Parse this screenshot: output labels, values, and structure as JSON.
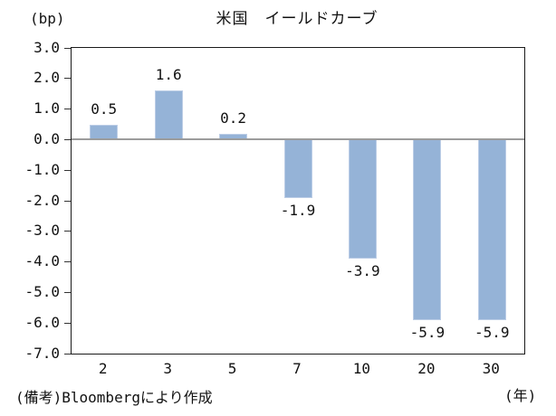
{
  "chart_data": {
    "type": "bar",
    "title": "米国　イールドカーブ",
    "y_axis_unit": "(bp)",
    "x_axis_unit": "(年)",
    "categories": [
      "2",
      "3",
      "5",
      "7",
      "10",
      "20",
      "30"
    ],
    "values": [
      0.5,
      1.6,
      0.2,
      -1.9,
      -3.9,
      -5.9,
      -5.9
    ],
    "value_labels": [
      "0.5",
      "1.6",
      "0.2",
      "-1.9",
      "-3.9",
      "-5.9",
      "-5.9"
    ],
    "y_ticks": [
      "3.0",
      "2.0",
      "1.0",
      "0.0",
      "-1.0",
      "-2.0",
      "-3.0",
      "-4.0",
      "-5.0",
      "-6.0",
      "-7.0"
    ],
    "ylim": [
      -7.0,
      3.0
    ],
    "grid": false,
    "legend": false,
    "bar_color": "#95B3D7",
    "bar_border_color": "#BCCDE6",
    "zero_line_color": "#9C9C9C",
    "axis_color": "#1A1A1A",
    "source_note": "(備考)Bloombergにより作成"
  }
}
